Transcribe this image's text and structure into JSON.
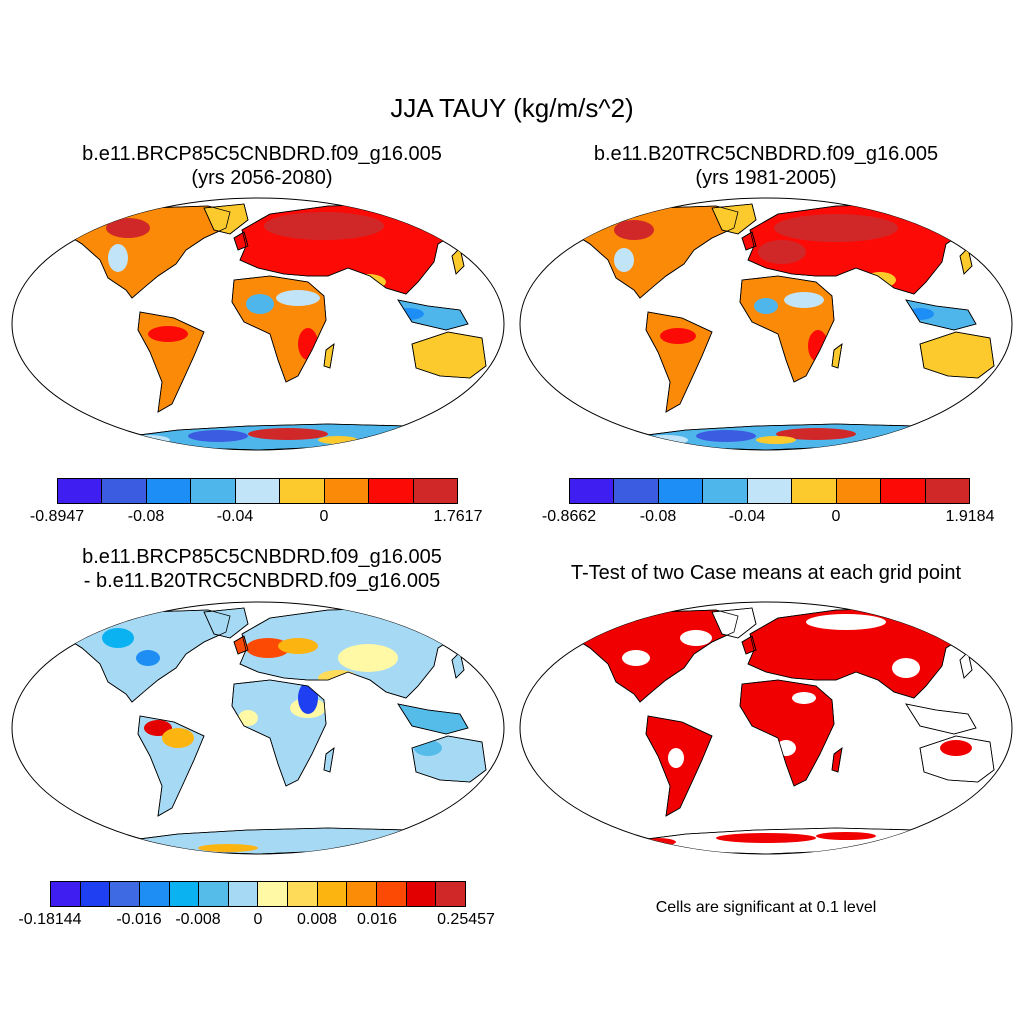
{
  "figure": {
    "title": "JJA TAUY (kg/m/s^2)"
  },
  "panels": [
    {
      "id": "case",
      "title_line1": "b.e11.BRCP85C5CNBDRD.f09_g16.005",
      "title_line2": "(yrs 2056-2080)",
      "colorbar": {
        "colors": [
          "#3f1ef2",
          "#3b5ce0",
          "#1d8ef5",
          "#4fb6ec",
          "#c2e4f8",
          "#fcca2c",
          "#fb8a08",
          "#fc0a06",
          "#d02828"
        ],
        "labels": [
          "-0.8947",
          "-0.08",
          "-0.04",
          "0",
          "1.7617"
        ]
      }
    },
    {
      "id": "control",
      "title_line1": "b.e11.B20TRC5CNBDRD.f09_g16.005",
      "title_line2": "(yrs 1981-2005)",
      "colorbar": {
        "colors": [
          "#3f1ef2",
          "#3b5ce0",
          "#1d8ef5",
          "#4fb6ec",
          "#c2e4f8",
          "#fcca2c",
          "#fb8a08",
          "#fc0a06",
          "#d02828"
        ],
        "labels": [
          "-0.8662",
          "-0.08",
          "-0.04",
          "0",
          "1.9184"
        ]
      }
    },
    {
      "id": "difference",
      "title_line1": "b.e11.BRCP85C5CNBDRD.f09_g16.005",
      "title_line2": "- b.e11.B20TRC5CNBDRD.f09_g16.005",
      "colorbar": {
        "colors": [
          "#3f1ef2",
          "#1e40f2",
          "#3e6ae4",
          "#1e8ef4",
          "#0ab2f2",
          "#55bcea",
          "#a6daf4",
          "#fff9a6",
          "#fedc5a",
          "#fcb410",
          "#fb8c08",
          "#fc4a04",
          "#e20000",
          "#d02828"
        ],
        "labels": [
          "-0.18144",
          "-0.016",
          "-0.008",
          "0",
          "0.008",
          "0.016",
          "0.25457"
        ]
      }
    },
    {
      "id": "ttest",
      "title_line1": "T-Test of two Case means at each grid point",
      "note": "Cells are significant at 0.1 level",
      "sig_color": "#f00000"
    }
  ]
}
